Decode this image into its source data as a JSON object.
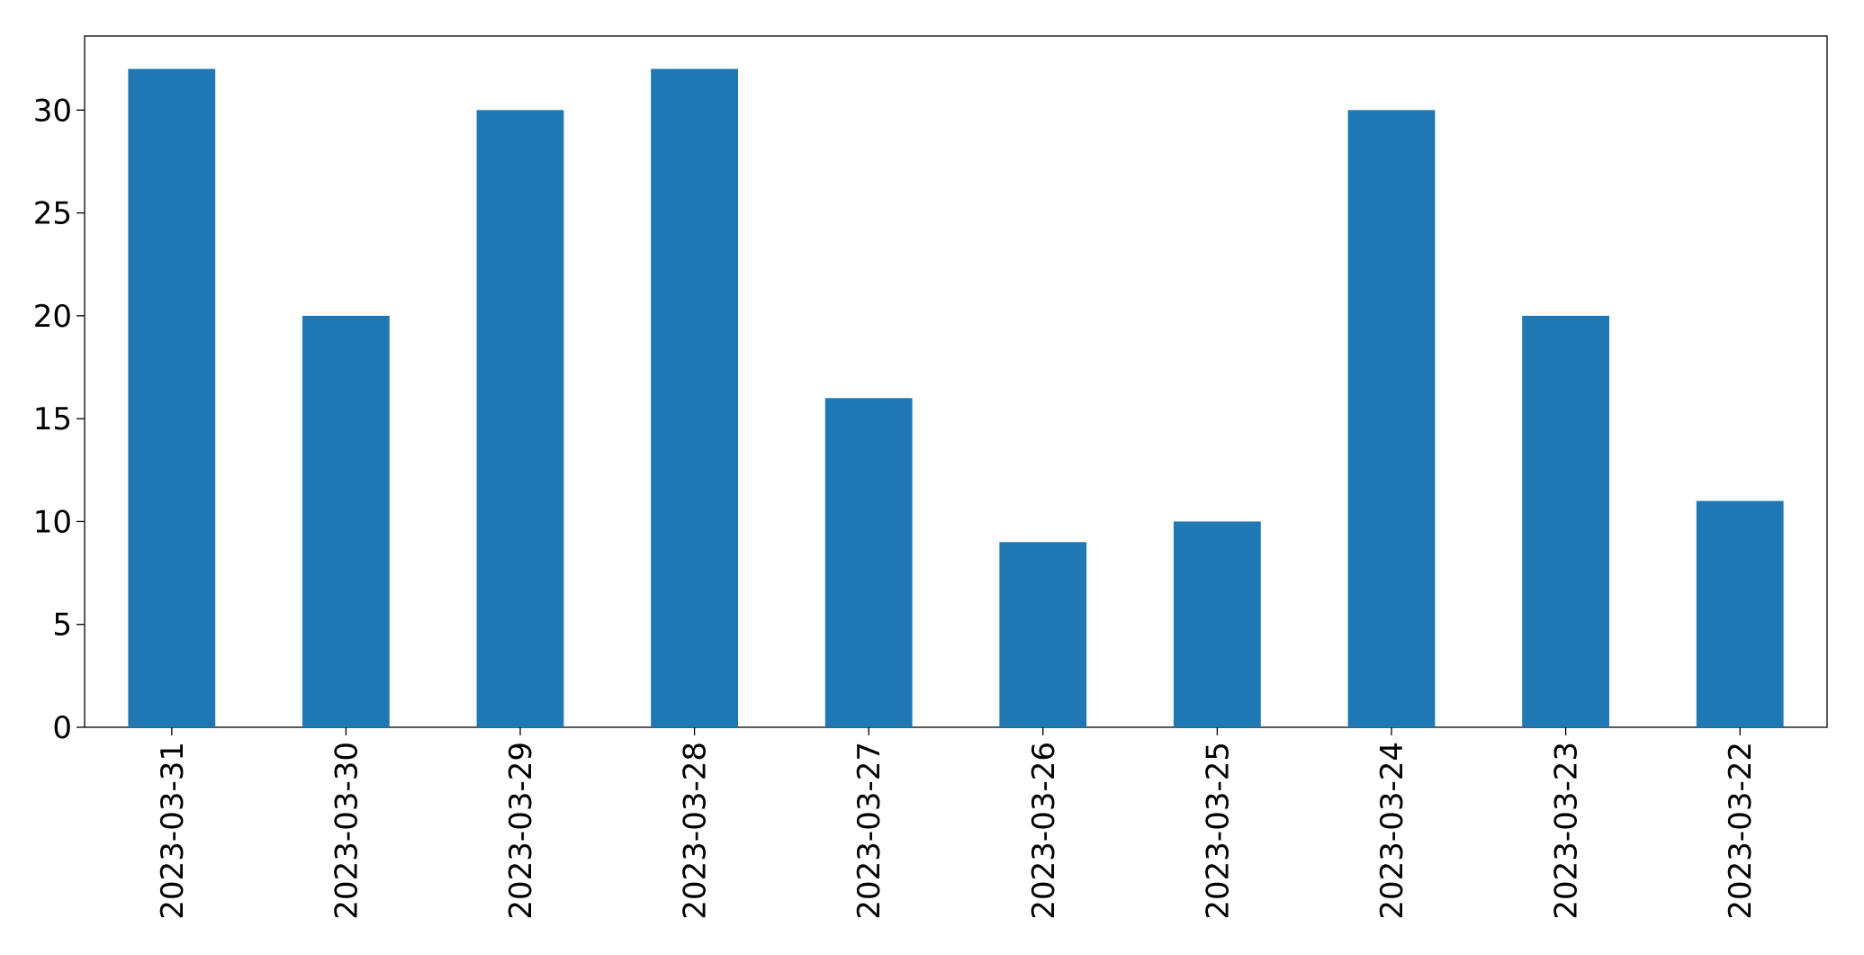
{
  "chart_data": {
    "type": "bar",
    "categories": [
      "2023-03-31",
      "2023-03-30",
      "2023-03-29",
      "2023-03-28",
      "2023-03-27",
      "2023-03-26",
      "2023-03-25",
      "2023-03-24",
      "2023-03-23",
      "2023-03-22"
    ],
    "values": [
      32,
      20,
      30,
      32,
      16,
      9,
      10,
      30,
      20,
      11
    ],
    "color": "#1f77b4",
    "ylim": [
      0,
      33.6
    ],
    "yticks": [
      0,
      5,
      10,
      15,
      20,
      25,
      30
    ],
    "grid": false
  }
}
